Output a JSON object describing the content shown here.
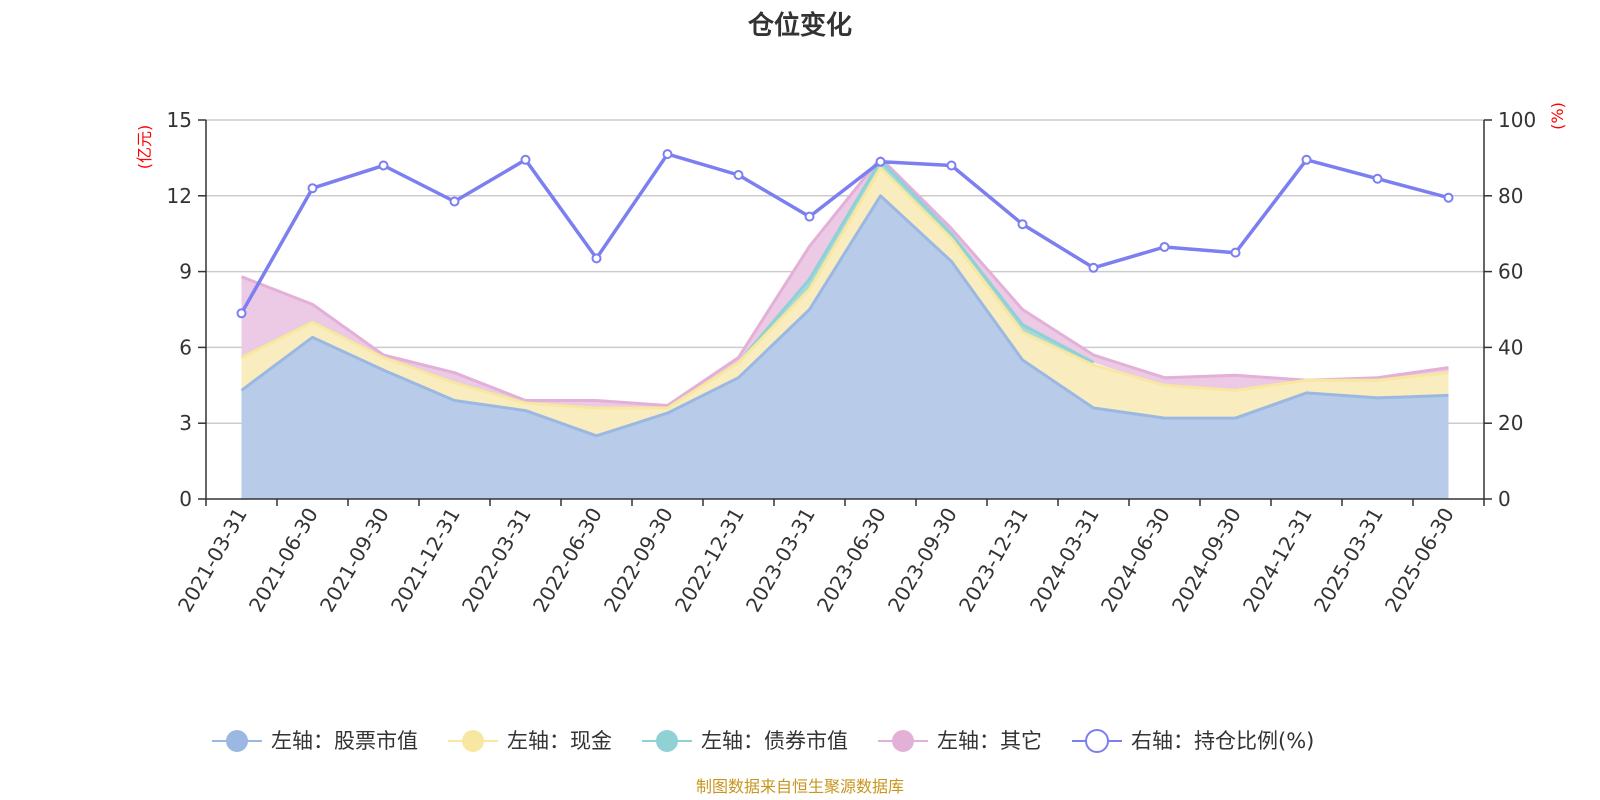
{
  "chart_data": {
    "type": "area",
    "title": "仓位变化",
    "left_unit": "(亿元)",
    "right_unit": "(%)",
    "left_ylim": [
      0,
      15
    ],
    "left_ticks": [
      "0",
      "3",
      "6",
      "9",
      "12",
      "15"
    ],
    "right_ylim": [
      0,
      100
    ],
    "right_ticks": [
      "0",
      "20",
      "40",
      "60",
      "80",
      "100"
    ],
    "grid": true,
    "legend_position": "bottom-center",
    "categories": [
      "2021-03-31",
      "2021-06-30",
      "2021-09-30",
      "2021-12-31",
      "2022-03-31",
      "2022-06-30",
      "2022-09-30",
      "2022-12-31",
      "2023-03-31",
      "2023-06-30",
      "2023-09-30",
      "2023-12-31",
      "2024-03-31",
      "2024-06-30",
      "2024-09-30",
      "2024-12-31",
      "2025-03-31",
      "2025-06-30"
    ],
    "series": [
      {
        "name": "左轴：股票市值",
        "axis": "left",
        "kind": "area",
        "color": "#9ab8e2",
        "fill": "#b8cbe9",
        "values": [
          4.3,
          6.4,
          5.1,
          3.9,
          3.5,
          2.5,
          3.4,
          4.8,
          7.5,
          12.0,
          9.4,
          5.5,
          3.6,
          3.2,
          3.2,
          4.2,
          4.0,
          4.1
        ]
      },
      {
        "name": "左轴：现金",
        "axis": "left",
        "kind": "area",
        "color": "#f7e7a0",
        "fill": "#f9edbf",
        "values": [
          1.3,
          0.6,
          0.5,
          0.7,
          0.3,
          1.1,
          0.2,
          0.6,
          0.8,
          1.1,
          0.9,
          1.1,
          1.7,
          1.3,
          1.1,
          0.5,
          0.7,
          0.9
        ]
      },
      {
        "name": "左轴：债券市值",
        "axis": "left",
        "kind": "area",
        "color": "#8fd1d4",
        "fill": "#a5d9db",
        "values": [
          0,
          0,
          0,
          0,
          0,
          0,
          0,
          0,
          0.4,
          0.3,
          0.2,
          0.3,
          0.1,
          null,
          null,
          null,
          null,
          null
        ]
      },
      {
        "name": "左轴：其它",
        "axis": "left",
        "kind": "area",
        "color": "#e3b0d8",
        "fill": "#ecc9e5",
        "values": [
          3.2,
          0.7,
          0.1,
          0.4,
          0.1,
          0.3,
          0.1,
          0.2,
          1.3,
          0.1,
          0.2,
          0.6,
          0.3,
          0.3,
          0.6,
          0.0,
          0.1,
          0.2
        ]
      },
      {
        "name": "右轴：持仓比例(%)",
        "axis": "right",
        "kind": "line",
        "color": "#7b7ff0",
        "values": [
          49,
          82,
          88,
          78.5,
          89.5,
          63.5,
          91,
          85.5,
          74.5,
          89,
          88,
          72.5,
          61,
          66.5,
          65,
          89.5,
          84.5,
          79.5
        ]
      }
    ],
    "source": "制图数据来自恒生聚源数据库"
  }
}
